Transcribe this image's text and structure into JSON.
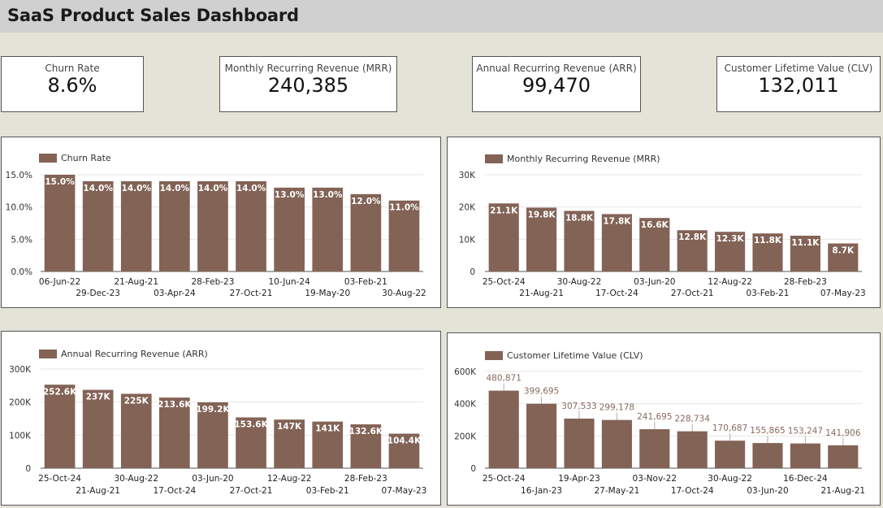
{
  "header": {
    "title": "SaaS Product Sales Dashboard"
  },
  "colors": {
    "bar": "#836356",
    "grid": "#e6e6e6",
    "axis": "#555555",
    "background": "#e3e3d8"
  },
  "kpis": [
    {
      "label": "Churn Rate",
      "value": "8.6%"
    },
    {
      "label": "Monthly Recurring Revenue (MRR)",
      "value": "240,385"
    },
    {
      "label": "Annual Recurring Revenue (ARR)",
      "value": "99,470"
    },
    {
      "label": "Customer Lifetime Value (CLV)",
      "value": "132,011"
    }
  ],
  "chart_data": [
    {
      "type": "bar",
      "title": "",
      "series": [
        {
          "name": "Churn Rate",
          "values": [
            15.0,
            14.0,
            14.0,
            14.0,
            14.0,
            14.0,
            13.0,
            13.0,
            12.0,
            11.0
          ]
        }
      ],
      "categories": [
        "06-Jun-22",
        "29-Dec-23",
        "21-Aug-21",
        "03-Apr-24",
        "28-Feb-23",
        "27-Oct-21",
        "10-Jun-24",
        "19-May-20",
        "03-Feb-21",
        "30-Aug-22"
      ],
      "data_labels": [
        "15.0%",
        "14.0%",
        "14.0%",
        "14.0%",
        "14.0%",
        "14.0%",
        "13.0%",
        "13.0%",
        "12.0%",
        "11.0%"
      ],
      "yticks": [
        0,
        5,
        10,
        15
      ],
      "ytick_labels": [
        "0.0%",
        "5.0%",
        "10.0%",
        "15.0%"
      ],
      "ylim": [
        0,
        15
      ],
      "label_style": "inside",
      "grid": true,
      "legend": "top-left"
    },
    {
      "type": "bar",
      "title": "",
      "series": [
        {
          "name": "Monthly Recurring Revenue (MRR)",
          "values": [
            21.1,
            19.8,
            18.8,
            17.8,
            16.6,
            12.8,
            12.3,
            11.8,
            11.1,
            8.7
          ]
        }
      ],
      "categories": [
        "25-Oct-24",
        "21-Aug-21",
        "30-Aug-22",
        "17-Oct-24",
        "03-Jun-20",
        "27-Oct-21",
        "12-Aug-22",
        "03-Feb-21",
        "28-Feb-23",
        "07-May-23"
      ],
      "data_labels": [
        "21.1K",
        "19.8K",
        "18.8K",
        "17.8K",
        "16.6K",
        "12.8K",
        "12.3K",
        "11.8K",
        "11.1K",
        "8.7K"
      ],
      "yticks": [
        0,
        10,
        20,
        30
      ],
      "ytick_labels": [
        "0",
        "10K",
        "20K",
        "30K"
      ],
      "ylim": [
        0,
        30
      ],
      "label_style": "inside",
      "grid": true,
      "legend": "top-left"
    },
    {
      "type": "bar",
      "title": "",
      "series": [
        {
          "name": "Annual Recurring Revenue (ARR)",
          "values": [
            252.6,
            237,
            225,
            213.6,
            199.2,
            153.6,
            147,
            141,
            132.6,
            104.4
          ]
        }
      ],
      "categories": [
        "25-Oct-24",
        "21-Aug-21",
        "30-Aug-22",
        "17-Oct-24",
        "03-Jun-20",
        "27-Oct-21",
        "12-Aug-22",
        "03-Feb-21",
        "28-Feb-23",
        "07-May-23"
      ],
      "data_labels": [
        "252.6K",
        "237K",
        "225K",
        "213.6K",
        "199.2K",
        "153.6K",
        "147K",
        "141K",
        "132.6K",
        "104.4K"
      ],
      "yticks": [
        0,
        100,
        200,
        300
      ],
      "ytick_labels": [
        "0",
        "100K",
        "200K",
        "300K"
      ],
      "ylim": [
        0,
        300
      ],
      "label_style": "inside",
      "grid": true,
      "legend": "top-left"
    },
    {
      "type": "bar",
      "title": "",
      "series": [
        {
          "name": "Customer Lifetime Value (CLV)",
          "values": [
            480871,
            399695,
            307533,
            299178,
            241695,
            228734,
            170687,
            155865,
            153247,
            141906
          ]
        }
      ],
      "categories": [
        "25-Oct-24",
        "16-Jan-23",
        "19-Apr-23",
        "27-May-21",
        "03-Nov-22",
        "17-Oct-24",
        "30-Aug-22",
        "03-Jun-20",
        "16-Dec-24",
        "21-Aug-21"
      ],
      "data_labels": [
        "480,871",
        "399,695",
        "307,533",
        "299,178",
        "241,695",
        "228,734",
        "170,687",
        "155,865",
        "153,247",
        "141,906"
      ],
      "yticks": [
        0,
        200000,
        400000,
        600000
      ],
      "ytick_labels": [
        "0",
        "200K",
        "400K",
        "600K"
      ],
      "ylim": [
        0,
        600000
      ],
      "label_style": "above",
      "grid": true,
      "legend": "top-left"
    }
  ]
}
